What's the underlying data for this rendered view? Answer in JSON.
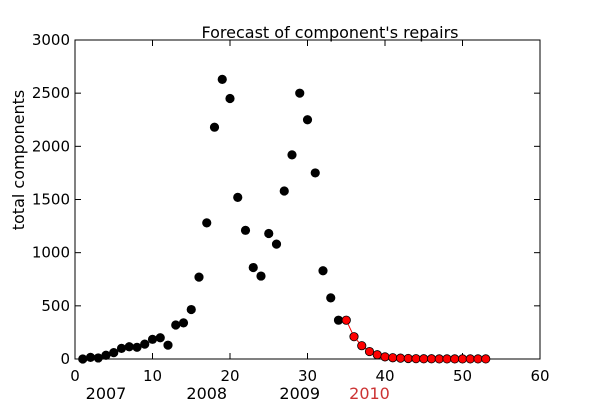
{
  "chart_data": {
    "type": "scatter",
    "title": "Forecast of component's repairs",
    "xlabel": "",
    "ylabel": "total components",
    "xlim": [
      0,
      60
    ],
    "ylim": [
      0,
      3000
    ],
    "x_ticks": [
      "0",
      "10",
      "20",
      "30",
      "40",
      "50",
      "60"
    ],
    "y_ticks": [
      "0",
      "500",
      "1000",
      "1500",
      "2000",
      "2500",
      "3000"
    ],
    "grid": false,
    "year_labels": [
      {
        "text": "2007",
        "x": 4,
        "color": "#000000"
      },
      {
        "text": "2008",
        "x": 17,
        "color": "#000000"
      },
      {
        "text": "2009",
        "x": 29,
        "color": "#000000"
      },
      {
        "text": "2010",
        "x": 38,
        "color": "#cc3333"
      }
    ],
    "series": [
      {
        "color": "#000000",
        "marker": "circle",
        "line": false,
        "x": [
          1,
          2,
          3,
          4,
          5,
          6,
          7,
          8,
          9,
          10,
          11,
          12,
          13,
          14,
          15,
          16,
          17,
          18,
          19,
          20,
          21,
          22,
          23,
          24,
          25,
          26,
          27,
          28,
          29,
          30,
          31,
          32,
          33,
          34
        ],
        "y": [
          0,
          15,
          10,
          35,
          60,
          100,
          115,
          110,
          140,
          185,
          200,
          130,
          320,
          340,
          465,
          770,
          1280,
          2180,
          2630,
          2450,
          1520,
          1210,
          860,
          780,
          1180,
          1080,
          1580,
          1920,
          2500,
          2250,
          1750,
          830,
          575,
          365
        ]
      },
      {
        "color": "#ff0000",
        "marker": "circle",
        "line": true,
        "x": [
          35,
          36,
          37,
          38,
          39,
          40,
          41,
          42,
          43,
          44,
          45,
          46,
          47,
          48,
          49,
          50,
          51,
          52,
          53
        ],
        "y": [
          365,
          210,
          125,
          70,
          40,
          20,
          12,
          8,
          5,
          3,
          2,
          2,
          1,
          1,
          1,
          1,
          1,
          1,
          1
        ]
      }
    ]
  }
}
